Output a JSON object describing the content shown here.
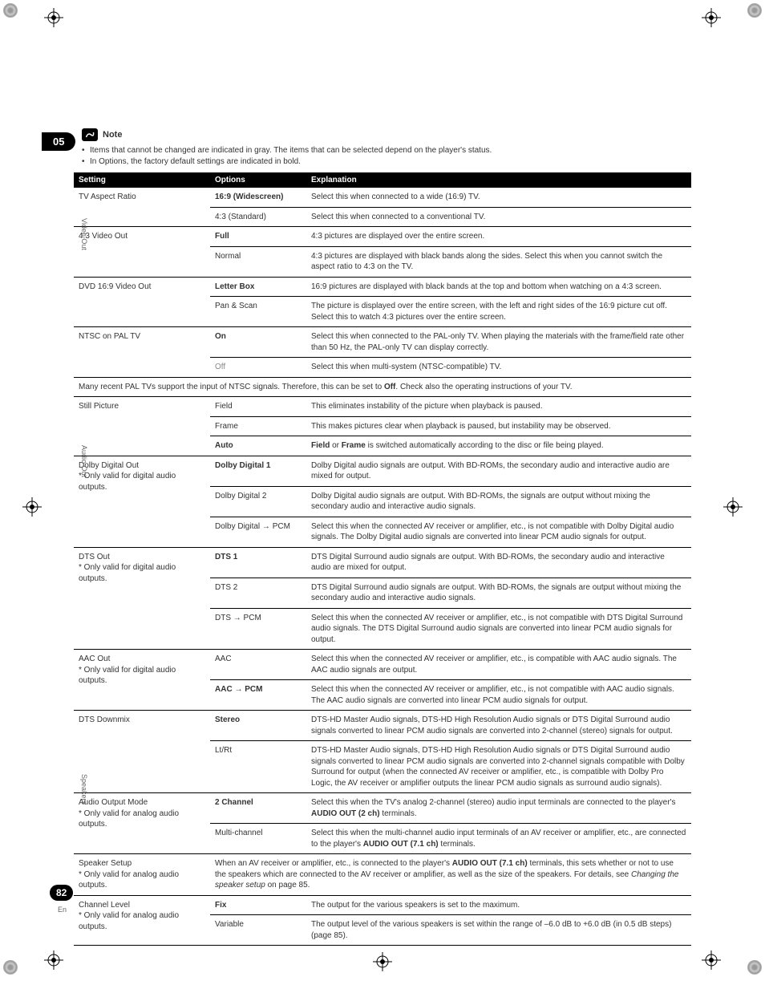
{
  "chapter": "05",
  "note_label": "Note",
  "bullets": [
    "Items that cannot be changed are indicated in gray. The items that can be selected depend on the player's status.",
    "In Options, the factory default settings are indicated in bold."
  ],
  "headers": {
    "setting": "Setting",
    "options": "Options",
    "explanation": "Explanation"
  },
  "side": {
    "video": "Video Out",
    "audio": "Audio Out",
    "speakers": "Speakers"
  },
  "rows": [
    {
      "s": "TV Aspect Ratio",
      "o": "16:9 (Widescreen)",
      "ob": true,
      "e": "Select this when connected to a wide (16:9) TV.",
      "first": true
    },
    {
      "s": "",
      "o": "4:3 (Standard)",
      "e": "Select this when connected to a conventional TV."
    },
    {
      "s": "4:3 Video Out",
      "o": "Full",
      "ob": true,
      "e": "4:3 pictures are displayed over the entire screen.",
      "first": true
    },
    {
      "s": "",
      "o": "Normal",
      "e": "4:3 pictures are displayed with black bands along the sides. Select this when you cannot switch the aspect ratio to 4:3 on the TV."
    },
    {
      "s": "DVD 16:9 Video Out",
      "o": "Letter Box",
      "ob": true,
      "e": "16:9 pictures are displayed with black bands at the top and bottom when watching on a 4:3 screen.",
      "first": true
    },
    {
      "s": "",
      "o": "Pan & Scan",
      "e": "The picture is displayed over the entire screen, with the left and right sides of the 16:9 picture cut off. Select this to watch 4:3 pictures over the entire screen."
    },
    {
      "s": "NTSC on PAL TV",
      "o": "On",
      "ob": true,
      "e": "Select this when connected to the PAL-only TV. When playing the materials with the frame/field rate other than 50 Hz, the PAL-only TV can display correctly.",
      "first": true
    },
    {
      "s": "",
      "o": "Off",
      "e": "Select this when multi-system (NTSC-compatible) TV.",
      "gray": true
    },
    {
      "span": "Many recent PAL TVs support the input of NTSC signals. Therefore, this can be set to <b>Off</b>. Check also the operating instructions of your TV."
    },
    {
      "s": "Still Picture",
      "o": "Field",
      "e": "This eliminates instability of the picture when playback is paused.",
      "first": true
    },
    {
      "s": "",
      "o": "Frame",
      "e": "This makes pictures clear when playback is paused, but instability may be observed."
    },
    {
      "s": "",
      "o": "Auto",
      "ob": true,
      "e": "<b>Field</b> or <b>Frame</b> is switched automatically according to the disc or file being played."
    },
    {
      "s": "Dolby Digital Out<br>* Only valid for digital audio outputs.",
      "o": "Dolby Digital 1",
      "ob": true,
      "e": "Dolby Digital audio signals are output. With BD-ROMs, the secondary audio and interactive audio are mixed for output.",
      "first": true
    },
    {
      "s": "",
      "o": "Dolby Digital 2",
      "e": "Dolby Digital audio signals are output. With BD-ROMs, the signals are output without mixing the secondary audio and interactive audio signals."
    },
    {
      "s": "",
      "o": "Dolby Digital → PCM",
      "e": "Select this when the connected AV receiver or amplifier, etc., is not compatible with Dolby Digital audio signals. The Dolby Digital audio signals are converted into linear PCM audio signals for output."
    },
    {
      "s": "DTS Out<br>* Only valid for digital audio outputs.",
      "o": "DTS 1",
      "ob": true,
      "e": "DTS Digital Surround audio signals are output. With BD-ROMs, the secondary audio and interactive audio are mixed for output.",
      "first": true
    },
    {
      "s": "",
      "o": "DTS 2",
      "e": "DTS Digital Surround audio signals are output. With BD-ROMs, the signals are output without mixing the secondary audio and interactive audio signals."
    },
    {
      "s": "",
      "o": "DTS → PCM",
      "e": "Select this when the connected AV receiver or amplifier, etc., is not compatible with DTS Digital Surround audio signals. The DTS Digital Surround audio signals are converted into linear PCM audio signals for output."
    },
    {
      "s": "AAC Out<br>* Only valid for digital audio outputs.",
      "o": "AAC",
      "e": "Select this when the connected AV receiver or amplifier, etc., is compatible with AAC audio signals. The AAC audio signals are output.",
      "first": true
    },
    {
      "s": "",
      "o": "AAC → PCM",
      "ob": true,
      "e": "Select this when the connected AV receiver or amplifier, etc., is not compatible with AAC audio signals. The AAC audio signals are converted into linear PCM audio signals for output."
    },
    {
      "s": "DTS Downmix",
      "o": "Stereo",
      "ob": true,
      "e": "DTS-HD Master Audio signals, DTS-HD High Resolution Audio signals or DTS Digital Surround audio signals converted to linear PCM audio signals are converted into 2-channel (stereo) signals for output.",
      "first": true
    },
    {
      "s": "",
      "o": "Lt/Rt",
      "e": "DTS-HD Master Audio signals, DTS-HD High Resolution Audio signals or DTS Digital Surround audio signals converted to linear PCM audio signals are converted into 2-channel signals compatible with Dolby Surround for output (when the connected AV receiver or amplifier, etc., is compatible with Dolby Pro Logic, the AV receiver or amplifier outputs the linear PCM audio signals as surround audio signals)."
    },
    {
      "s": "Audio Output Mode<br>* Only valid for analog audio outputs.",
      "o": "2 Channel",
      "ob": true,
      "e": "Select this when the TV's analog 2-channel (stereo) audio input terminals are connected to the player's <b>AUDIO OUT (2 ch)</b> terminals.",
      "first": true
    },
    {
      "s": "",
      "o": "Multi-channel",
      "e": "Select this when the multi-channel audio input terminals of an AV receiver or amplifier, etc., are connected to the player's <b>AUDIO OUT (7.1 ch)</b> terminals."
    },
    {
      "s": "Speaker Setup<br>* Only valid for analog audio outputs.",
      "merged": "When an AV receiver or amplifier, etc., is connected to the player's <b>AUDIO OUT (7.1 ch)</b> terminals, this sets whether or not to use the speakers which are connected to the AV receiver or amplifier, as well as the size of the speakers. For details, see <i>Changing the speaker setup</i> on page 85."
    },
    {
      "s": "Channel Level<br>* Only valid for analog audio outputs.",
      "o": "Fix",
      "ob": true,
      "e": "The output for the various speakers is set to the maximum.",
      "first": true
    },
    {
      "s": "",
      "o": "Variable",
      "e": "The output level of the various speakers is set within the range of –6.0 dB to +6.0 dB (in 0.5 dB steps) (page 85)."
    }
  ],
  "page_num": "82",
  "page_lang": "En"
}
